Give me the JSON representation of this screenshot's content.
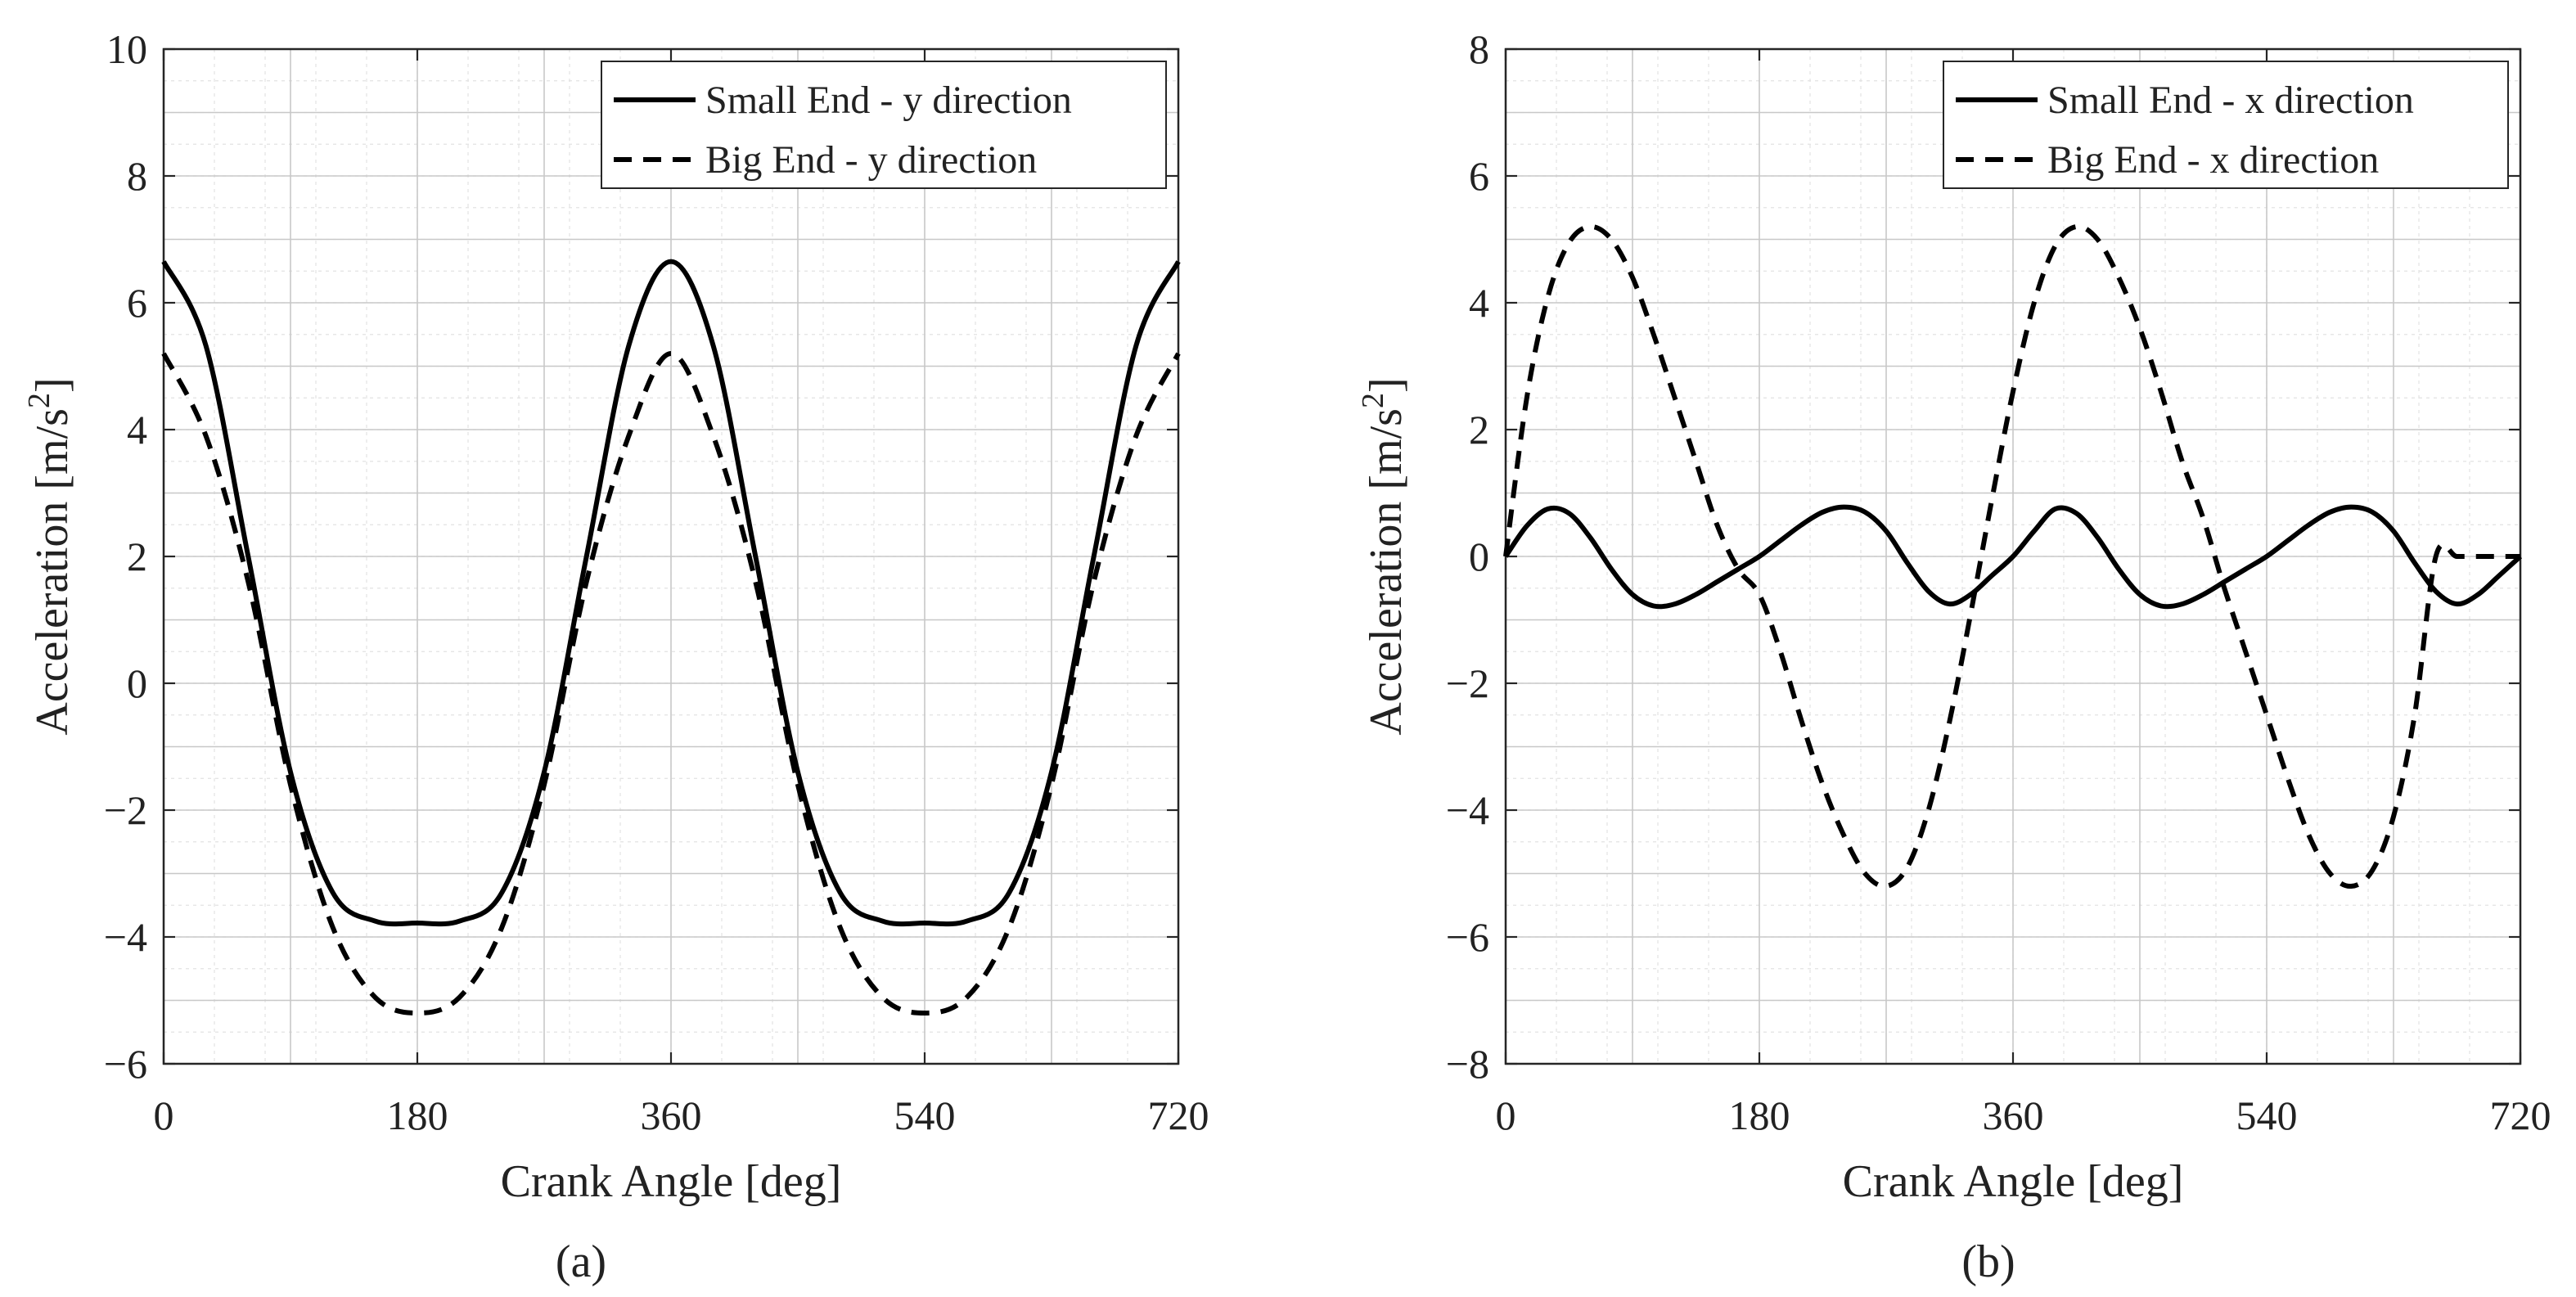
{
  "chart_data": [
    {
      "type": "line",
      "panel_label": "(a)",
      "xlabel": "Crank Angle [deg]",
      "ylabel": "Acceleration [m/s",
      "ylabel_superscript": "2",
      "ylabel_suffix": "]",
      "xlim": [
        0,
        720
      ],
      "ylim": [
        -6,
        10
      ],
      "xticks": [
        0,
        180,
        360,
        540,
        720
      ],
      "yticks": [
        -6,
        -4,
        -2,
        0,
        2,
        4,
        6,
        8,
        10
      ],
      "xtick_labels": [
        "0",
        "180",
        "360",
        "540",
        "720"
      ],
      "ytick_labels": [
        "−6",
        "−4",
        "−2",
        "0",
        "2",
        "4",
        "6",
        "8",
        "10"
      ],
      "grid": true,
      "minor_grid": true,
      "legend_position": "top-right",
      "x": [
        0,
        30,
        60,
        90,
        120,
        150,
        180,
        210,
        240,
        270,
        300,
        330,
        360,
        390,
        420,
        450,
        480,
        510,
        540,
        570,
        600,
        630,
        660,
        690,
        720
      ],
      "series": [
        {
          "name": "Small End - y direction",
          "style": "solid",
          "values": [
            6.65,
            5.32,
            2.0,
            -1.4,
            -3.3,
            -3.75,
            -3.78,
            -3.75,
            -3.3,
            -1.4,
            2.0,
            5.32,
            6.65,
            5.32,
            2.0,
            -1.4,
            -3.3,
            -3.75,
            -3.78,
            -3.75,
            -3.3,
            -1.4,
            2.0,
            5.32,
            6.65
          ]
        },
        {
          "name": "Big End - y direction",
          "style": "dashed",
          "values": [
            5.2,
            3.9,
            1.6,
            -1.6,
            -3.85,
            -4.95,
            -5.2,
            -4.95,
            -3.85,
            -1.6,
            1.6,
            3.9,
            5.2,
            3.9,
            1.6,
            -1.6,
            -3.85,
            -4.95,
            -5.2,
            -4.95,
            -3.85,
            -1.6,
            1.6,
            3.9,
            5.2
          ]
        }
      ]
    },
    {
      "type": "line",
      "panel_label": "(b)",
      "xlabel": "Crank Angle [deg]",
      "ylabel": "Acceleration [m/s",
      "ylabel_superscript": "2",
      "ylabel_suffix": "]",
      "xlim": [
        0,
        720
      ],
      "ylim": [
        -8,
        8
      ],
      "xticks": [
        0,
        180,
        360,
        540,
        720
      ],
      "yticks": [
        -8,
        -6,
        -4,
        -2,
        0,
        2,
        4,
        6,
        8
      ],
      "xtick_labels": [
        "0",
        "180",
        "360",
        "540",
        "720"
      ],
      "ytick_labels": [
        "−8",
        "−6",
        "−4",
        "−2",
        "0",
        "2",
        "4",
        "6",
        "8"
      ],
      "grid": true,
      "minor_grid": true,
      "legend_position": "top-right",
      "x": [
        0,
        15,
        30,
        45,
        60,
        75,
        90,
        105,
        120,
        135,
        150,
        165,
        180,
        195,
        210,
        225,
        240,
        255,
        270,
        285,
        300,
        315,
        330,
        345,
        360,
        375,
        390,
        405,
        420,
        435,
        450,
        465,
        480,
        495,
        510,
        525,
        540,
        555,
        570,
        585,
        600,
        615,
        630,
        645,
        660,
        675,
        690,
        705,
        720
      ],
      "series": [
        {
          "name": "Small End - x direction",
          "style": "solid",
          "values": [
            0.0,
            0.48,
            0.75,
            0.68,
            0.3,
            -0.2,
            -0.6,
            -0.78,
            -0.75,
            -0.6,
            -0.4,
            -0.2,
            0.0,
            0.25,
            0.5,
            0.7,
            0.78,
            0.7,
            0.4,
            -0.1,
            -0.55,
            -0.75,
            -0.6,
            -0.3,
            0.0,
            0.4,
            0.75,
            0.68,
            0.3,
            -0.2,
            -0.6,
            -0.78,
            -0.75,
            -0.6,
            -0.4,
            -0.2,
            0.0,
            0.25,
            0.5,
            0.7,
            0.78,
            0.7,
            0.4,
            -0.1,
            -0.55,
            -0.75,
            -0.6,
            -0.3,
            0.0
          ]
        },
        {
          "name": "Big End - x direction",
          "style": "dashed",
          "values": [
            0.0,
            2.5,
            4.1,
            4.95,
            5.2,
            5.0,
            4.4,
            3.5,
            2.5,
            1.5,
            0.5,
            -0.2,
            -0.6,
            -1.5,
            -2.6,
            -3.6,
            -4.4,
            -5.0,
            -5.2,
            -4.9,
            -4.0,
            -2.6,
            -0.9,
            0.9,
            2.6,
            4.0,
            4.9,
            5.2,
            5.0,
            4.4,
            3.6,
            2.6,
            1.5,
            0.6,
            -0.5,
            -1.5,
            -2.5,
            -3.5,
            -4.4,
            -5.0,
            -5.2,
            -4.95,
            -4.1,
            -2.5,
            0.0,
            0.0,
            0.0,
            0.0,
            0.0
          ]
        }
      ]
    }
  ]
}
